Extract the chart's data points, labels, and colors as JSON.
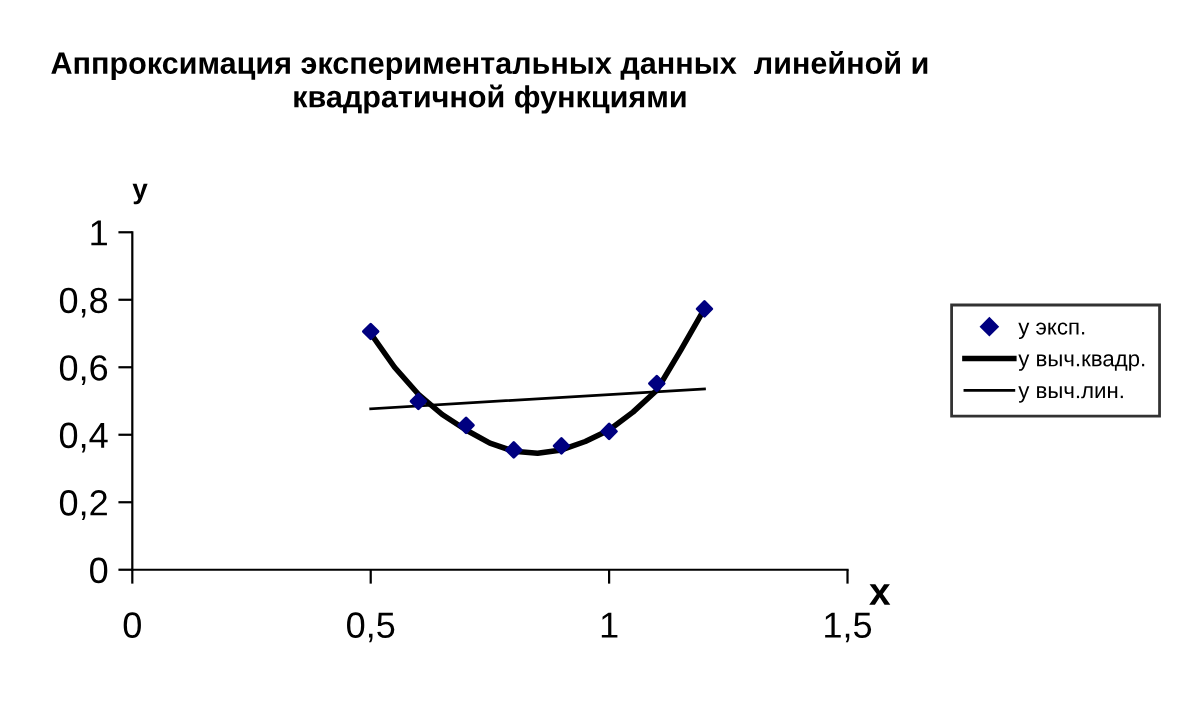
{
  "chart_data": {
    "type": "line",
    "title": "Аппроксимация экспериментальных данных  линейной и\nквадратичной функциями",
    "xlabel": "x",
    "ylabel": "y",
    "xlim": [
      0,
      1.5
    ],
    "xticks": [
      {
        "value": 0,
        "label": "0"
      },
      {
        "value": 0.5,
        "label": "0,5"
      },
      {
        "value": 1,
        "label": "1"
      },
      {
        "value": 1.5,
        "label": "1,5"
      }
    ],
    "ylim": [
      0,
      1
    ],
    "yticks": [
      {
        "value": 0,
        "label": "0"
      },
      {
        "value": 0.2,
        "label": "0,2"
      },
      {
        "value": 0.4,
        "label": "0,4"
      },
      {
        "value": 0.6,
        "label": "0,6"
      },
      {
        "value": 0.8,
        "label": "0,8"
      },
      {
        "value": 1,
        "label": "1"
      }
    ],
    "grid": false,
    "legend": "right",
    "series": [
      {
        "name": "y эксп.",
        "type": "scatter",
        "marker": "diamond",
        "color": "#000080",
        "x": [
          0.5,
          0.6,
          0.7,
          0.8,
          0.9,
          1.0,
          1.1,
          1.2
        ],
        "values": [
          0.706,
          0.499,
          0.428,
          0.355,
          0.367,
          0.41,
          0.552,
          0.773
        ]
      },
      {
        "name": "y выч.квадр.",
        "color": "#000000",
        "x": [
          0.5,
          0.55,
          0.6,
          0.65,
          0.7,
          0.75,
          0.8,
          0.85,
          0.9,
          0.95,
          1.0,
          1.05,
          1.1,
          1.15,
          1.2
        ],
        "values": [
          0.7,
          0.6,
          0.52,
          0.46,
          0.414,
          0.375,
          0.351,
          0.345,
          0.355,
          0.38,
          0.414,
          0.467,
          0.532,
          0.65,
          0.773
        ]
      },
      {
        "name": "y выч.лин.",
        "color": "#000000",
        "x": [
          0.5,
          1.2
        ],
        "values": [
          0.477,
          0.536
        ]
      }
    ]
  }
}
